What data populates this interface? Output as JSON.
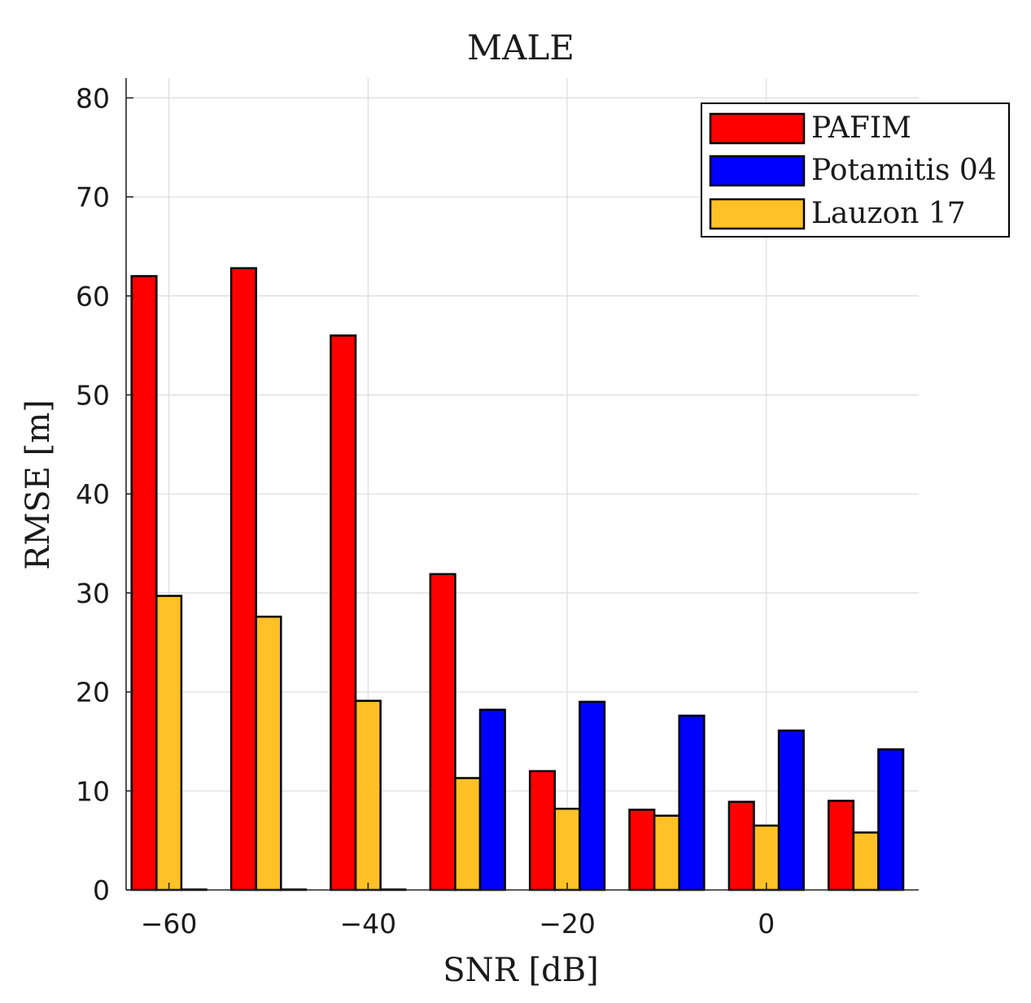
{
  "chart_data": {
    "type": "bar",
    "title": "MALE",
    "xlabel": "SNR [dB]",
    "ylabel": "RMSE [m]",
    "categories": [
      -60,
      -50,
      -40,
      -30,
      -20,
      -10,
      0,
      10
    ],
    "x_ticks": [
      -60,
      -40,
      -20,
      0
    ],
    "x_tick_labels": [
      "−60",
      "−40",
      "−20",
      "0"
    ],
    "xlim": [
      -64.3,
      15.3
    ],
    "ylim": [
      0,
      82
    ],
    "y_ticks": [
      0,
      10,
      20,
      30,
      40,
      50,
      60,
      70,
      80
    ],
    "y_tick_labels": [
      "0",
      "10",
      "20",
      "30",
      "40",
      "50",
      "60",
      "70",
      "80"
    ],
    "grid": true,
    "legend_position": "top-right",
    "series": [
      {
        "name": "PAFIM",
        "color": "#ff0000",
        "values": [
          62.0,
          62.8,
          56.0,
          31.9,
          12.0,
          8.1,
          8.9,
          9.0
        ]
      },
      {
        "name": "Lauzon 17",
        "color": "#ffc125",
        "values": [
          29.7,
          27.6,
          19.1,
          11.3,
          8.2,
          7.5,
          6.5,
          5.8
        ]
      },
      {
        "name": "Potamitis 04",
        "color": "#0000ff",
        "values": [
          0,
          0,
          0,
          18.2,
          19.0,
          17.6,
          16.1,
          14.2
        ]
      }
    ],
    "legend": [
      {
        "name": "PAFIM",
        "color": "#ff0000"
      },
      {
        "name": "Potamitis 04",
        "color": "#0000ff"
      },
      {
        "name": "Lauzon 17",
        "color": "#ffc125"
      }
    ]
  }
}
